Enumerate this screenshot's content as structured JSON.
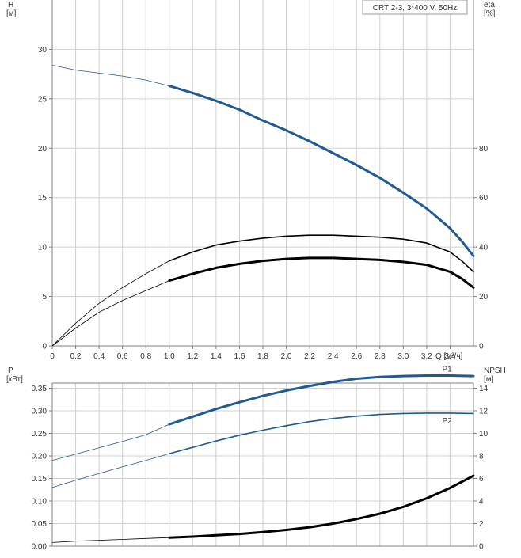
{
  "colors": {
    "head_curve": "#1f5a93",
    "power_curve": "#1f5a93",
    "efficiency_curve": "#000000",
    "npsh_curve": "#000000",
    "grid": "#d0d0d0",
    "frame": "#808080"
  },
  "chart_data": [
    {
      "type": "line",
      "title": "CRT 2-3, 3*400 V, 50Hz",
      "xlabel": "Q [м³/ч]",
      "x_ticks": [
        "0",
        "0,2",
        "0,4",
        "0,6",
        "0,8",
        "1,0",
        "1,2",
        "1,4",
        "1,6",
        "1,8",
        "2,0",
        "2,2",
        "2,4",
        "2,6",
        "2,8",
        "3,0",
        "3,2",
        "3,4"
      ],
      "xlim": [
        0,
        3.6
      ],
      "grid": true,
      "left_axis": {
        "label_line1": "H",
        "label_line2": "[м]",
        "ylim": [
          0,
          35
        ],
        "ticks": [
          "0",
          "5",
          "10",
          "15",
          "20",
          "25",
          "30"
        ]
      },
      "right_axis": {
        "label_line1": "eta",
        "label_line2": "[%]",
        "ylim": [
          0,
          140
        ],
        "ticks": [
          "0",
          "20",
          "40",
          "60",
          "80"
        ]
      },
      "series": [
        {
          "axis": "left",
          "x": [
            0,
            0.2,
            0.4,
            0.6,
            0.8,
            1.0,
            1.2,
            1.4,
            1.6,
            1.8,
            2.0,
            2.2,
            2.4,
            2.6,
            2.8,
            3.0,
            3.2,
            3.4,
            3.5,
            3.6
          ],
          "y": [
            28.4,
            27.9,
            27.6,
            27.3,
            26.9,
            26.3,
            25.6,
            24.8,
            23.9,
            22.8,
            21.8,
            20.7,
            19.5,
            18.3,
            17.0,
            15.5,
            13.9,
            11.9,
            10.6,
            9.1
          ],
          "operating_range": [
            1.0,
            3.6
          ]
        },
        {
          "axis": "left",
          "x": [
            0,
            0.2,
            0.4,
            0.6,
            0.8,
            1.0,
            1.2,
            1.4,
            1.6,
            1.8,
            2.0,
            2.2,
            2.4,
            2.6,
            2.8,
            3.0,
            3.2,
            3.4,
            3.5,
            3.6
          ],
          "y": [
            0,
            2.3,
            4.3,
            5.9,
            7.3,
            8.6,
            9.5,
            10.2,
            10.6,
            10.9,
            11.1,
            11.2,
            11.2,
            11.1,
            11.0,
            10.8,
            10.4,
            9.5,
            8.6,
            7.5
          ],
          "operating_range": [
            1.0,
            3.6
          ]
        },
        {
          "axis": "left",
          "x": [
            0,
            0.2,
            0.4,
            0.6,
            0.8,
            1.0,
            1.2,
            1.4,
            1.6,
            1.8,
            2.0,
            2.2,
            2.4,
            2.6,
            2.8,
            3.0,
            3.2,
            3.4,
            3.5,
            3.6
          ],
          "y": [
            0,
            1.8,
            3.4,
            4.6,
            5.6,
            6.6,
            7.3,
            7.9,
            8.3,
            8.6,
            8.8,
            8.9,
            8.9,
            8.8,
            8.7,
            8.5,
            8.2,
            7.5,
            6.8,
            5.9
          ],
          "operating_range": [
            1.0,
            3.6
          ]
        }
      ]
    },
    {
      "type": "line",
      "xlim": [
        0,
        3.6
      ],
      "grid": true,
      "left_axis": {
        "label_line1": "P",
        "label_line2": "[кВт]",
        "ylim": [
          0,
          0.4
        ],
        "ticks": [
          "0.00",
          "0.05",
          "0.10",
          "0.15",
          "0.20",
          "0.25",
          "0.30",
          "0.35"
        ]
      },
      "right_axis": {
        "label_line1": "NPSH",
        "label_line2": "[м]",
        "ylim": [
          0,
          16
        ],
        "ticks": [
          "0",
          "2",
          "4",
          "6",
          "8",
          "10",
          "12",
          "14"
        ]
      },
      "series": [
        {
          "name": "P1",
          "axis": "left",
          "x": [
            0,
            0.2,
            0.4,
            0.6,
            0.8,
            1.0,
            1.2,
            1.4,
            1.6,
            1.8,
            2.0,
            2.2,
            2.4,
            2.6,
            2.8,
            3.0,
            3.2,
            3.4,
            3.6
          ],
          "y": [
            0.19,
            0.204,
            0.218,
            0.232,
            0.247,
            0.27,
            0.287,
            0.304,
            0.319,
            0.333,
            0.345,
            0.355,
            0.364,
            0.371,
            0.375,
            0.377,
            0.378,
            0.378,
            0.377
          ],
          "operating_range": [
            1.0,
            3.6
          ]
        },
        {
          "name": "P2",
          "axis": "left",
          "x": [
            0,
            0.2,
            0.4,
            0.6,
            0.8,
            1.0,
            1.2,
            1.4,
            1.6,
            1.8,
            2.0,
            2.2,
            2.4,
            2.6,
            2.8,
            3.0,
            3.2,
            3.4,
            3.6
          ],
          "y": [
            0.13,
            0.146,
            0.161,
            0.176,
            0.19,
            0.205,
            0.219,
            0.233,
            0.246,
            0.257,
            0.267,
            0.276,
            0.283,
            0.288,
            0.292,
            0.294,
            0.295,
            0.295,
            0.294
          ],
          "operating_range": [
            1.0,
            3.6
          ]
        },
        {
          "axis": "left",
          "x": [
            0,
            0.2,
            0.4,
            0.6,
            0.8,
            1.0,
            1.2,
            1.4,
            1.6,
            1.8,
            2.0,
            2.2,
            2.4,
            2.6,
            2.8,
            3.0,
            3.2,
            3.4,
            3.6
          ],
          "y": [
            0.008,
            0.011,
            0.013,
            0.015,
            0.017,
            0.019,
            0.021,
            0.024,
            0.027,
            0.031,
            0.036,
            0.042,
            0.05,
            0.06,
            0.072,
            0.087,
            0.106,
            0.129,
            0.156
          ],
          "operating_range": [
            1.0,
            3.6
          ]
        }
      ]
    }
  ]
}
